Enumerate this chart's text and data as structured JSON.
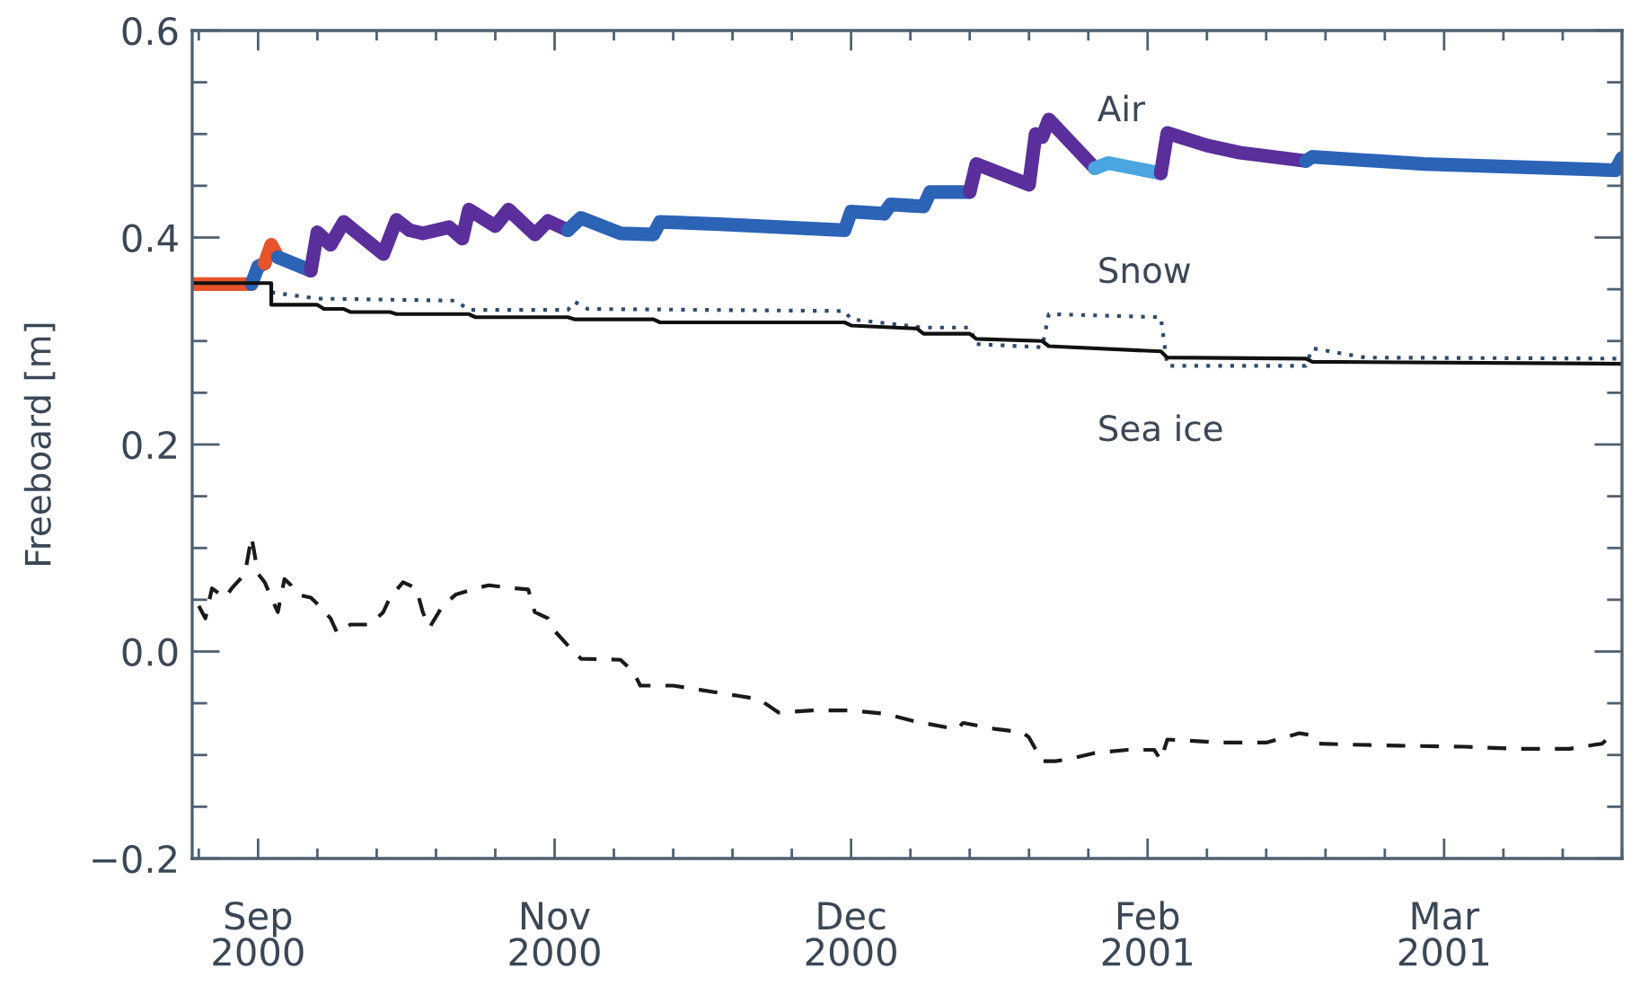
{
  "chart_data": {
    "type": "line",
    "ylabel": "Freeboard [m]",
    "xlim": [
      "2000-09-18",
      "2001-04-23"
    ],
    "ylim": [
      -0.2,
      0.6
    ],
    "xticks": [
      {
        "value": "2000-09-28",
        "label": "Sep\n2000"
      },
      {
        "value": "2000-11-12",
        "label": "Nov\n2000"
      },
      {
        "value": "2000-12-27",
        "label": "Dec\n2000"
      },
      {
        "value": "2001-02-10",
        "label": "Feb\n2001"
      },
      {
        "value": "2001-03-27",
        "label": "Mar\n2001"
      }
    ],
    "yticks": [
      {
        "value": -0.2,
        "label": "−0.2"
      },
      {
        "value": 0,
        "label": "0.0"
      },
      0.2,
      0.4,
      0.6
    ],
    "series": [
      {
        "color": "#e8532b",
        "x": [
          "2000-09-18",
          "2000-09-27"
        ],
        "values": [
          0.355,
          0.355
        ]
      },
      {
        "color": "#2b63b6",
        "x": [
          "2000-09-27",
          "2000-09-28",
          "2000-09-29"
        ],
        "values": [
          0.355,
          0.372,
          0.375
        ]
      },
      {
        "color": "#e8532b",
        "x": [
          "2000-09-29",
          "2000-09-30",
          "2000-10-01"
        ],
        "values": [
          0.375,
          0.393,
          0.381
        ]
      },
      {
        "color": "#2b63b6",
        "x": [
          "2000-10-01",
          "2000-10-06"
        ],
        "values": [
          0.381,
          0.368
        ]
      },
      {
        "color": "#5a2f9c",
        "x": [
          "2000-10-06",
          "2000-10-07",
          "2000-10-09",
          "2000-10-11",
          "2000-10-17",
          "2000-10-19",
          "2000-10-21",
          "2000-10-23",
          "2000-10-27",
          "2000-10-29",
          "2000-10-30",
          "2000-11-03",
          "2000-11-05",
          "2000-11-09",
          "2000-11-11",
          "2000-11-14"
        ],
        "values": [
          0.368,
          0.405,
          0.393,
          0.415,
          0.384,
          0.417,
          0.407,
          0.404,
          0.41,
          0.399,
          0.427,
          0.411,
          0.427,
          0.403,
          0.416,
          0.407
        ]
      },
      {
        "color": "#2b63b6",
        "x": [
          "2000-11-14",
          "2000-11-16",
          "2000-11-22",
          "2000-11-27",
          "2000-11-28",
          "2000-12-07",
          "2000-12-26",
          "2000-12-27",
          "2001-01-01",
          "2001-01-02",
          "2001-01-07",
          "2001-01-08",
          "2001-01-14"
        ],
        "values": [
          0.407,
          0.419,
          0.404,
          0.403,
          0.415,
          0.413,
          0.407,
          0.425,
          0.423,
          0.432,
          0.43,
          0.444,
          0.444
        ]
      },
      {
        "color": "#5a2f9c",
        "x": [
          "2001-01-14",
          "2001-01-15",
          "2001-01-23",
          "2001-01-24",
          "2001-01-25",
          "2001-01-26",
          "2001-02-02"
        ],
        "values": [
          0.444,
          0.471,
          0.451,
          0.5,
          0.497,
          0.514,
          0.467
        ]
      },
      {
        "name": "Air",
        "color": "#4aa6e0",
        "x": [
          "2001-02-02",
          "2001-02-04",
          "2001-02-12"
        ],
        "values": [
          0.467,
          0.472,
          0.462
        ]
      },
      {
        "color": "#5a2f9c",
        "x": [
          "2001-02-12",
          "2001-02-13",
          "2001-02-19",
          "2001-02-24",
          "2001-03-06"
        ],
        "values": [
          0.462,
          0.501,
          0.489,
          0.482,
          0.474
        ]
      },
      {
        "color": "#2b63b6",
        "x": [
          "2001-03-06",
          "2001-03-07",
          "2001-03-24",
          "2001-04-22",
          "2001-04-23"
        ],
        "values": [
          0.474,
          0.478,
          0.471,
          0.465,
          0.477
        ]
      },
      {
        "name": "Snow",
        "color": "#2f4a6b",
        "line_style": "dotted",
        "x": [
          "2000-09-30",
          "2000-10-07",
          "2000-10-28",
          "2000-10-30",
          "2000-11-14",
          "2000-11-15",
          "2000-11-17",
          "2000-12-26",
          "2000-12-27",
          "2001-01-07",
          "2001-01-14",
          "2001-01-15",
          "2001-01-25",
          "2001-01-26",
          "2001-02-12",
          "2001-02-13",
          "2001-03-06",
          "2001-03-07",
          "2001-03-15",
          "2001-04-23"
        ],
        "values": [
          0.347,
          0.341,
          0.339,
          0.33,
          0.33,
          0.338,
          0.331,
          0.329,
          0.321,
          0.313,
          0.313,
          0.297,
          0.294,
          0.326,
          0.323,
          0.276,
          0.276,
          0.293,
          0.284,
          0.283
        ]
      },
      {
        "name": "Sea ice",
        "color": "#111111",
        "line_style": "solid",
        "x": [
          "2000-09-18",
          "2000-09-30",
          "2000-09-30",
          "2000-10-07",
          "2000-10-08",
          "2000-10-11",
          "2000-10-12",
          "2000-10-18",
          "2000-10-19",
          "2000-10-30",
          "2000-10-31",
          "2000-11-14",
          "2000-11-15",
          "2000-11-27",
          "2000-11-28",
          "2000-12-26",
          "2000-12-27",
          "2001-01-06",
          "2001-01-07",
          "2001-01-14",
          "2001-01-15",
          "2001-01-25",
          "2001-01-26",
          "2001-02-12",
          "2001-02-13",
          "2001-03-06",
          "2001-03-07",
          "2001-04-23"
        ],
        "values": [
          0.356,
          0.356,
          0.335,
          0.335,
          0.331,
          0.331,
          0.328,
          0.328,
          0.326,
          0.326,
          0.323,
          0.323,
          0.321,
          0.321,
          0.318,
          0.318,
          0.315,
          0.312,
          0.307,
          0.307,
          0.302,
          0.3,
          0.295,
          0.29,
          0.284,
          0.283,
          0.28,
          0.278
        ]
      },
      {
        "color": "#1a1a1a",
        "line_style": "dashed",
        "x": [
          "2000-09-19",
          "2000-09-20",
          "2000-09-21",
          "2000-09-23",
          "2000-09-24",
          "2000-09-26",
          "2000-09-27",
          "2000-09-28",
          "2000-09-29",
          "2000-09-30",
          "2000-10-01",
          "2000-10-02",
          "2000-10-03",
          "2000-10-04",
          "2000-10-06",
          "2000-10-07",
          "2000-10-09",
          "2000-10-10",
          "2000-10-12",
          "2000-10-15",
          "2000-10-17",
          "2000-10-18",
          "2000-10-20",
          "2000-10-22",
          "2000-10-23",
          "2000-10-24",
          "2000-10-26",
          "2000-10-28",
          "2000-10-31",
          "2000-11-02",
          "2000-11-06",
          "2000-11-08",
          "2000-11-09",
          "2000-11-11",
          "2000-11-12",
          "2000-11-14",
          "2000-11-16",
          "2000-11-22",
          "2000-11-24",
          "2000-11-25",
          "2000-11-30",
          "2000-12-04",
          "2000-12-07",
          "2000-12-10",
          "2000-12-13",
          "2000-12-16",
          "2000-12-21",
          "2000-12-27",
          "2001-01-01",
          "2001-01-06",
          "2001-01-12",
          "2001-01-13",
          "2001-01-18",
          "2001-01-22",
          "2001-01-23",
          "2001-01-25",
          "2001-01-27",
          "2001-01-29",
          "2001-02-02",
          "2001-02-07",
          "2001-02-11",
          "2001-02-12",
          "2001-02-13",
          "2001-02-21",
          "2001-02-28",
          "2001-03-05",
          "2001-03-07",
          "2001-03-08",
          "2001-03-13",
          "2001-03-20",
          "2001-03-30",
          "2001-04-07",
          "2001-04-15",
          "2001-04-20",
          "2001-04-21"
        ],
        "values": [
          0.044,
          0.032,
          0.061,
          0.052,
          0.061,
          0.075,
          0.111,
          0.075,
          0.067,
          0.052,
          0.038,
          0.07,
          0.064,
          0.055,
          0.052,
          0.046,
          0.032,
          0.018,
          0.026,
          0.026,
          0.038,
          0.052,
          0.067,
          0.061,
          0.038,
          0.023,
          0.044,
          0.055,
          0.061,
          0.064,
          0.061,
          0.06,
          0.038,
          0.032,
          0.02,
          0.006,
          -0.007,
          -0.008,
          -0.02,
          -0.033,
          -0.033,
          -0.037,
          -0.04,
          -0.043,
          -0.046,
          -0.059,
          -0.057,
          -0.057,
          -0.06,
          -0.068,
          -0.075,
          -0.069,
          -0.075,
          -0.078,
          -0.083,
          -0.106,
          -0.106,
          -0.104,
          -0.098,
          -0.095,
          -0.095,
          -0.105,
          -0.085,
          -0.088,
          -0.088,
          -0.079,
          -0.081,
          -0.089,
          -0.09,
          -0.091,
          -0.092,
          -0.094,
          -0.094,
          -0.089,
          -0.083
        ]
      }
    ]
  }
}
